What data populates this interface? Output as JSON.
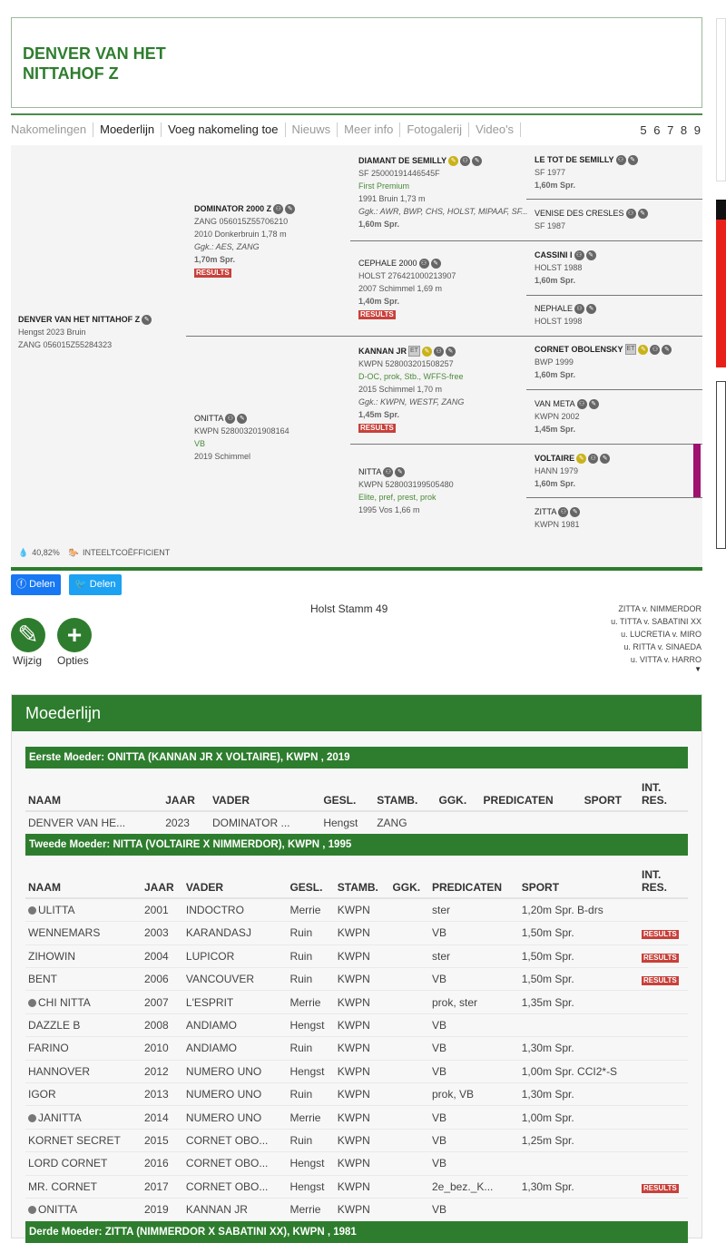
{
  "title": "DENVER VAN HET NITTAHOF Z",
  "nav": {
    "items": [
      {
        "label": "Nakomelingen",
        "active": false
      },
      {
        "label": "Moederlijn",
        "active": true
      },
      {
        "label": "Voeg nakomeling toe",
        "active": true
      },
      {
        "label": "Nieuws",
        "active": false
      },
      {
        "label": "Meer info",
        "active": false
      },
      {
        "label": "Fotogalerij",
        "active": false
      },
      {
        "label": "Video's",
        "active": false
      }
    ],
    "pages": "5 6 7 8 9"
  },
  "pedigree": {
    "subject": {
      "name": "DENVER VAN HET NITTAHOF Z",
      "line1": "Hengst 2023 Bruin",
      "line2": "ZANG 056015Z55284323"
    },
    "sire": {
      "name": "DOMINATOR 2000 Z",
      "reg": "ZANG 056015Z55706210",
      "info": "2010 Donkerbruin 1,78 m",
      "ggk": "Ggk.: AES, ZANG",
      "sport": "1,70m Spr.",
      "results": "RESULTS"
    },
    "dam": {
      "name": "ONITTA",
      "reg": "KWPN 528003201908164",
      "pred": "VB",
      "info": "2019 Schimmel"
    },
    "ss": {
      "name": "DIAMANT DE SEMILLY",
      "reg": "SF 25000191446545F",
      "pred": "First Premium",
      "info": "1991 Bruin 1,73 m",
      "ggk": "Ggk.: AWR, BWP, CHS, HOLST, MIPAAF, SF...",
      "sport": "1,60m Spr."
    },
    "sd": {
      "name": "CEPHALE 2000",
      "reg": "HOLST 276421000213907",
      "info": "2007 Schimmel 1,69 m",
      "sport": "1,40m Spr.",
      "results": "RESULTS"
    },
    "ds": {
      "name": "KANNAN JR",
      "badge": "ET",
      "reg": "KWPN 528003201508257",
      "pred": "D-OC, prok, Stb., WFFS-free",
      "info": "2015 Schimmel 1,70 m",
      "ggk": "Ggk.: KWPN, WESTF, ZANG",
      "sport": "1,45m Spr.",
      "results": "RESULTS"
    },
    "dd": {
      "name": "NITTA",
      "reg": "KWPN 528003199505480",
      "pred": "Elite, pref, prest, prok",
      "info": "1995 Vos 1,66 m"
    },
    "g4": [
      {
        "name": "LE TOT DE SEMILLY",
        "l1": "SF 1977",
        "sport": "1,60m Spr.",
        "bold": true
      },
      {
        "name": "VENISE DES CRESLES",
        "l1": "SF 1987",
        "sport": "",
        "bold": false
      },
      {
        "name": "CASSINI I",
        "l1": "HOLST 1988",
        "sport": "1,60m Spr.",
        "bold": true
      },
      {
        "name": "NEPHALE",
        "l1": "HOLST 1998",
        "sport": "",
        "bold": false
      },
      {
        "name": "CORNET OBOLENSKY",
        "badge": "ET",
        "l1": "BWP 1999",
        "sport": "1,60m Spr.",
        "bold": true
      },
      {
        "name": "VAN META",
        "l1": "KWPN 2002",
        "sport": "1,45m Spr.",
        "bold": false
      },
      {
        "name": "VOLTAIRE",
        "l1": "HANN 1979",
        "sport": "1,60m Spr.",
        "bold": true
      },
      {
        "name": "ZITTA",
        "l1": "KWPN 1981",
        "sport": "",
        "bold": false
      }
    ],
    "inbreeding": "40,82%",
    "inbreeding_label": "INTEELTCOËFFICIENT"
  },
  "share": {
    "facebook": "Delen",
    "twitter": "Delen",
    "facebook_color": "#1877f2",
    "twitter_color": "#1da1f2"
  },
  "stamm": "Holst Stamm 49",
  "damline": [
    "ZITTA v. NIMMERDOR",
    "u. TITTA v. SABATINI XX",
    "u. LUCRETIA v. MIRO",
    "u. RITTA v. SINAEDA",
    "u. VITTA v. HARRO"
  ],
  "actions": {
    "edit": "Wijzig",
    "options": "Opties"
  },
  "moederlijn": {
    "title": "Moederlijn",
    "columns": [
      "NAAM",
      "JAAR",
      "VADER",
      "GESL.",
      "STAMB.",
      "GGK.",
      "PREDICATEN",
      "SPORT",
      "INT. RES."
    ],
    "sections": [
      {
        "title": "Eerste Moeder: ONITTA (KANNAN JR X VOLTAIRE), KWPN , 2019",
        "rows": [
          {
            "naam": "DENVER VAN HE...",
            "jaar": "2023",
            "vader": "DOMINATOR ...",
            "gesl": "Hengst",
            "stamb": "ZANG",
            "ggk": "",
            "pred": "",
            "sport": "",
            "res": "",
            "mare": false
          }
        ]
      },
      {
        "title": "Tweede Moeder: NITTA (VOLTAIRE X NIMMERDOR), KWPN , 1995",
        "rows": [
          {
            "naam": "ULITTA",
            "jaar": "2001",
            "vader": "INDOCTRO",
            "gesl": "Merrie",
            "stamb": "KWPN",
            "ggk": "",
            "pred": "ster",
            "sport": "1,20m Spr. B-drs",
            "res": "",
            "mare": true
          },
          {
            "naam": "WENNEMARS",
            "jaar": "2003",
            "vader": "KARANDASJ",
            "gesl": "Ruin",
            "stamb": "KWPN",
            "ggk": "",
            "pred": "VB",
            "sport": "1,50m Spr.",
            "res": "RESULTS",
            "mare": false
          },
          {
            "naam": "ZIHOWIN",
            "jaar": "2004",
            "vader": "LUPICOR",
            "gesl": "Ruin",
            "stamb": "KWPN",
            "ggk": "",
            "pred": "ster",
            "sport": "1,50m Spr.",
            "res": "RESULTS",
            "mare": false
          },
          {
            "naam": "BENT",
            "jaar": "2006",
            "vader": "VANCOUVER",
            "gesl": "Ruin",
            "stamb": "KWPN",
            "ggk": "",
            "pred": "VB",
            "sport": "1,50m Spr.",
            "res": "RESULTS",
            "mare": false
          },
          {
            "naam": "CHI NITTA",
            "jaar": "2007",
            "vader": "L'ESPRIT",
            "gesl": "Merrie",
            "stamb": "KWPN",
            "ggk": "",
            "pred": "prok, ster",
            "sport": "1,35m Spr.",
            "res": "",
            "mare": true
          },
          {
            "naam": "DAZZLE B",
            "jaar": "2008",
            "vader": "ANDIAMO",
            "gesl": "Hengst",
            "stamb": "KWPN",
            "ggk": "",
            "pred": "VB",
            "sport": "",
            "res": "",
            "mare": false
          },
          {
            "naam": "FARINO",
            "jaar": "2010",
            "vader": "ANDIAMO",
            "gesl": "Ruin",
            "stamb": "KWPN",
            "ggk": "",
            "pred": "VB",
            "sport": "1,30m Spr.",
            "res": "",
            "mare": false
          },
          {
            "naam": "HANNOVER",
            "jaar": "2012",
            "vader": "NUMERO UNO",
            "gesl": "Hengst",
            "stamb": "KWPN",
            "ggk": "",
            "pred": "VB",
            "sport": "1,00m Spr. CCI2*-S",
            "res": "",
            "mare": false
          },
          {
            "naam": "IGOR",
            "jaar": "2013",
            "vader": "NUMERO UNO",
            "gesl": "Ruin",
            "stamb": "KWPN",
            "ggk": "",
            "pred": "prok, VB",
            "sport": "1,30m Spr.",
            "res": "",
            "mare": false
          },
          {
            "naam": "JANITTA",
            "jaar": "2014",
            "vader": "NUMERO UNO",
            "gesl": "Merrie",
            "stamb": "KWPN",
            "ggk": "",
            "pred": "VB",
            "sport": "1,00m Spr.",
            "res": "",
            "mare": true
          },
          {
            "naam": "KORNET SECRET",
            "jaar": "2015",
            "vader": "CORNET OBO...",
            "gesl": "Ruin",
            "stamb": "KWPN",
            "ggk": "",
            "pred": "VB",
            "sport": "1,25m Spr.",
            "res": "",
            "mare": false
          },
          {
            "naam": "LORD CORNET",
            "jaar": "2016",
            "vader": "CORNET OBO...",
            "gesl": "Hengst",
            "stamb": "KWPN",
            "ggk": "",
            "pred": "VB",
            "sport": "",
            "res": "",
            "mare": false
          },
          {
            "naam": "MR. CORNET",
            "jaar": "2017",
            "vader": "CORNET OBO...",
            "gesl": "Hengst",
            "stamb": "KWPN",
            "ggk": "",
            "pred": "2e_bez._K...",
            "sport": "1,30m Spr.",
            "res": "RESULTS",
            "mare": false
          },
          {
            "naam": "ONITTA",
            "jaar": "2019",
            "vader": "KANNAN JR",
            "gesl": "Merrie",
            "stamb": "KWPN",
            "ggk": "",
            "pred": "VB",
            "sport": "",
            "res": "",
            "mare": true
          }
        ]
      },
      {
        "title": "Derde Moeder: ZITTA (NIMMERDOR X SABATINI XX), KWPN , 1981",
        "rows": []
      }
    ]
  },
  "colors": {
    "brand_green": "#2e7d2e",
    "results_red": "#c8403a",
    "highlight_magenta": "#a0106e"
  }
}
